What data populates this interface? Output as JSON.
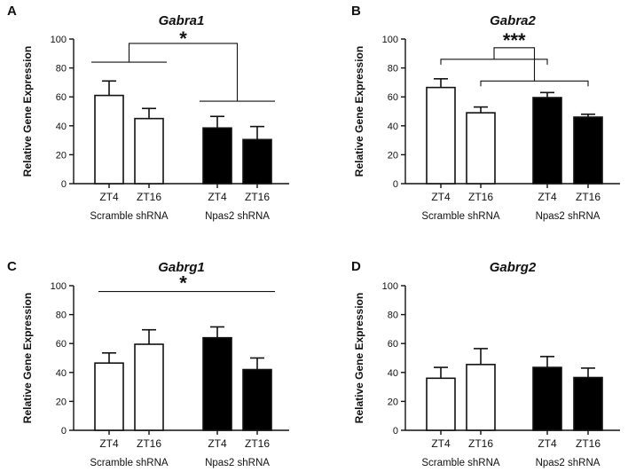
{
  "chart_data": [
    {
      "panel": "A",
      "type": "bar",
      "title": "Gabra1",
      "ylabel": "Relative Gene Expression",
      "ylim": [
        0,
        100
      ],
      "yticks": [
        0,
        20,
        40,
        60,
        80,
        100
      ],
      "categories": [
        "ZT4",
        "ZT16",
        "ZT4",
        "ZT16"
      ],
      "groups": [
        "Scramble shRNA",
        "Npas2 shRNA"
      ],
      "values": [
        61,
        45,
        38.5,
        30.5
      ],
      "errors": [
        10,
        7,
        8,
        9
      ],
      "fills": [
        "#ffffff",
        "#ffffff",
        "#000000",
        "#000000"
      ],
      "significance": "*"
    },
    {
      "panel": "B",
      "type": "bar",
      "title": "Gabra2",
      "ylabel": "Relative Gene Expression",
      "ylim": [
        0,
        100
      ],
      "yticks": [
        0,
        20,
        40,
        60,
        80,
        100
      ],
      "categories": [
        "ZT4",
        "ZT16",
        "ZT4",
        "ZT16"
      ],
      "groups": [
        "Scramble shRNA",
        "Npas2 shRNA"
      ],
      "values": [
        66.5,
        49,
        59.5,
        46
      ],
      "errors": [
        6,
        4,
        3.5,
        2
      ],
      "fills": [
        "#ffffff",
        "#ffffff",
        "#000000",
        "#000000"
      ],
      "significance": "***"
    },
    {
      "panel": "C",
      "type": "bar",
      "title": "Gabrg1",
      "ylabel": "Relative Gene Expression",
      "ylim": [
        0,
        100
      ],
      "yticks": [
        0,
        20,
        40,
        60,
        80,
        100
      ],
      "categories": [
        "ZT4",
        "ZT16",
        "ZT4",
        "ZT16"
      ],
      "groups": [
        "Scramble shRNA",
        "Npas2 shRNA"
      ],
      "values": [
        46.5,
        59.5,
        64,
        42
      ],
      "errors": [
        7,
        10,
        7.5,
        8
      ],
      "fills": [
        "#ffffff",
        "#ffffff",
        "#000000",
        "#000000"
      ],
      "significance": "*"
    },
    {
      "panel": "D",
      "type": "bar",
      "title": "Gabrg2",
      "ylabel": "Relative Gene Expression",
      "ylim": [
        0,
        100
      ],
      "yticks": [
        0,
        20,
        40,
        60,
        80,
        100
      ],
      "categories": [
        "ZT4",
        "ZT16",
        "ZT4",
        "ZT16"
      ],
      "groups": [
        "Scramble shRNA",
        "Npas2 shRNA"
      ],
      "values": [
        36,
        45.5,
        43.5,
        36.5
      ],
      "errors": [
        7.5,
        11,
        7.5,
        6.5
      ],
      "fills": [
        "#ffffff",
        "#ffffff",
        "#000000",
        "#000000"
      ],
      "significance": ""
    }
  ]
}
